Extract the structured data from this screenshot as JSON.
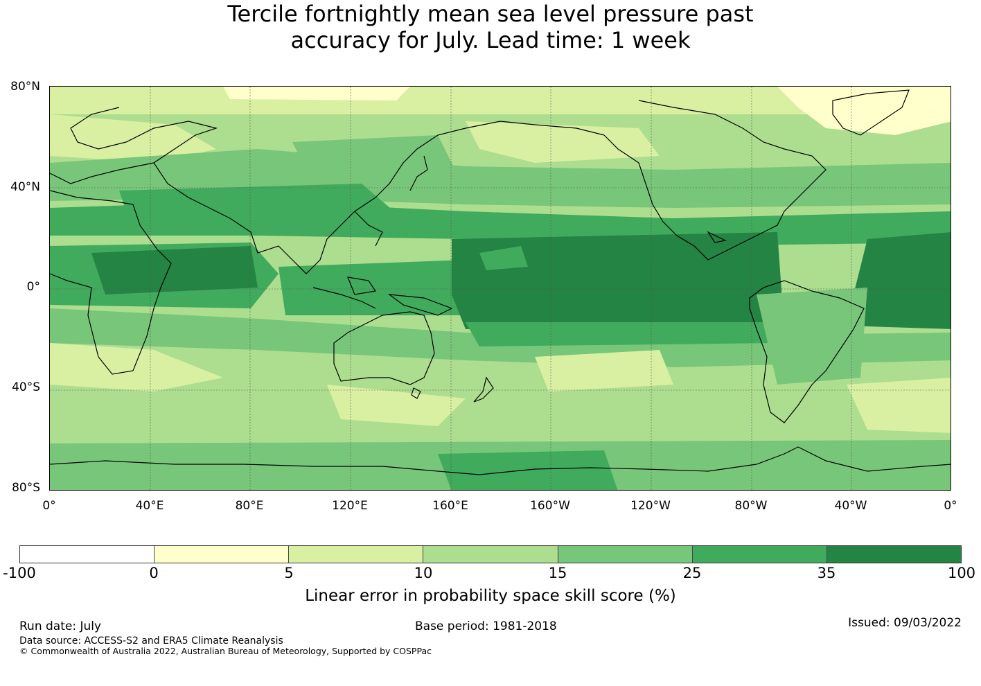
{
  "title": {
    "line1": "Tercile fortnightly mean sea level pressure past",
    "line2": "accuracy for July. Lead time: 1 week"
  },
  "map": {
    "lat_labels": [
      "80°N",
      "40°N",
      "0°",
      "40°S",
      "80°S"
    ],
    "lon_labels": [
      "0°",
      "40°E",
      "80°E",
      "120°E",
      "160°E",
      "160°W",
      "120°W",
      "80°W",
      "40°W",
      "0°"
    ],
    "gridlines": true,
    "coastlines": true,
    "projection": "equirectangular, centred on 180°",
    "skill_zones": [
      {
        "region": "tropical Pacific (central/east)",
        "score_class": "35-100"
      },
      {
        "region": "tropical Indian Ocean",
        "score_class": "35-100"
      },
      {
        "region": "tropical Atlantic",
        "score_class": "35-100"
      },
      {
        "region": "maritime continent / west Pacific",
        "score_class": "25-35"
      },
      {
        "region": "subtropics",
        "score_class": "15-25"
      },
      {
        "region": "mid-latitudes",
        "score_class": "10-15"
      },
      {
        "region": "high latitudes",
        "score_class": "5-10"
      },
      {
        "region": "Arctic / Greenland",
        "score_class": "0-5"
      }
    ]
  },
  "colorbar": {
    "ticks": [
      "-100",
      "0",
      "5",
      "10",
      "15",
      "25",
      "35",
      "100"
    ],
    "colors": [
      "#ffffff",
      "#ffffcc",
      "#d9f0a3",
      "#addd8e",
      "#78c679",
      "#41ab5d",
      "#238443"
    ],
    "label": "Linear error in probability space skill score (%)"
  },
  "footer": {
    "run_date": "Run date: July",
    "base_period": "Base period: 1981-2018",
    "issued": "Issued: 09/03/2022",
    "data_source": "Data source: ACCESS-S2 and ERA5 Climate Reanalysis",
    "copyright": "© Commonwealth of Australia 2022, Australian Bureau of Meteorology, Supported by COSPPac"
  }
}
